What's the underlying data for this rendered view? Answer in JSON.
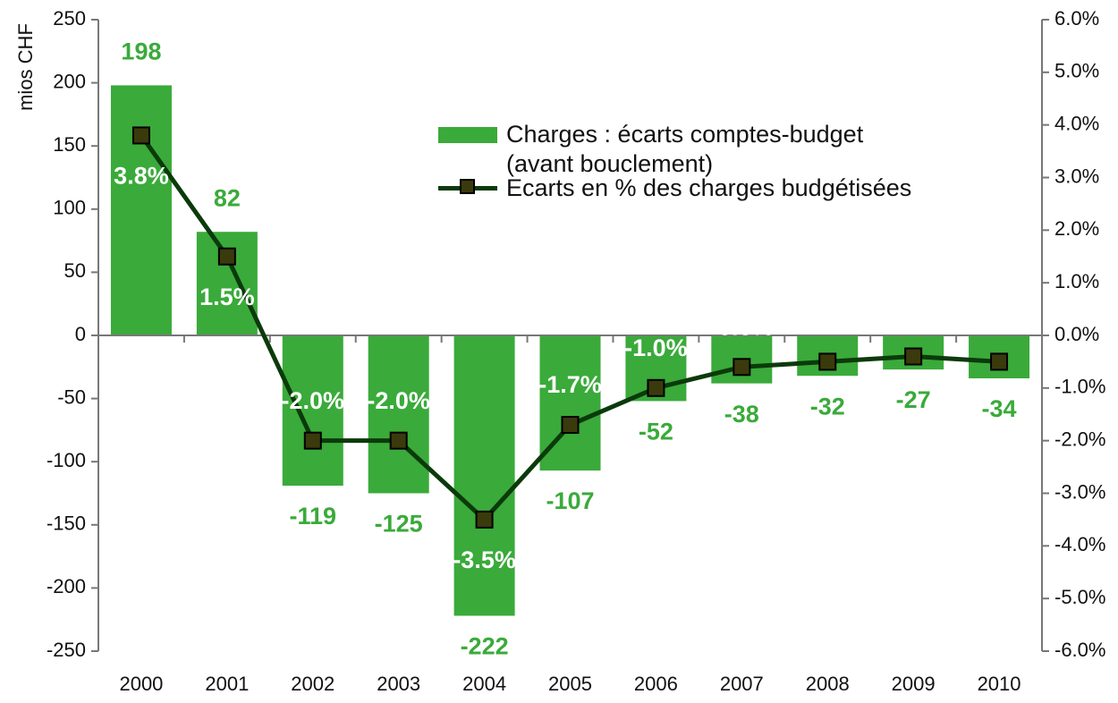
{
  "chart_data": {
    "type": "bar_line",
    "ylabel": "mios CHF",
    "categories": [
      "2000",
      "2001",
      "2002",
      "2003",
      "2004",
      "2005",
      "2006",
      "2007",
      "2008",
      "2009",
      "2010"
    ],
    "series": [
      {
        "name": "Charges : écarts comptes-budget (avant bouclement)",
        "type": "bar",
        "color": "#3aaa3a",
        "values": [
          198,
          82,
          -119,
          -125,
          -222,
          -107,
          -52,
          -38,
          -32,
          -27,
          -34
        ]
      },
      {
        "name": "Ecarts en % des charges budgétisées",
        "type": "line",
        "axis": "y2",
        "color": "#0b3a0b",
        "marker_color": "#3b3a0c",
        "values": [
          3.8,
          1.5,
          -2.0,
          -2.0,
          -3.5,
          -1.7,
          -1.0,
          -0.6,
          -0.5,
          -0.4,
          -0.5
        ],
        "value_labels": [
          "3.8%",
          "1.5%",
          "-2.0%",
          "-2.0%",
          "-3.5%",
          "-1.7%",
          "-1.0%",
          "-0.6%",
          "-0.5%",
          "-0.4%",
          "-0.5%"
        ]
      }
    ],
    "ylim": [
      -250,
      250
    ],
    "yticks": [
      -250,
      -200,
      -150,
      -100,
      -50,
      0,
      50,
      100,
      150,
      200,
      250
    ],
    "y2lim": [
      -6,
      6
    ],
    "y2ticks": [
      {
        "value": -6,
        "label": "-6.0%"
      },
      {
        "value": -5,
        "label": "-5.0%"
      },
      {
        "value": -4,
        "label": "-4.0%"
      },
      {
        "value": -3,
        "label": "-3.0%"
      },
      {
        "value": -2,
        "label": "-2.0%"
      },
      {
        "value": -1,
        "label": "-1.0%"
      },
      {
        "value": 0,
        "label": "0.0%"
      },
      {
        "value": 1,
        "label": "1.0%"
      },
      {
        "value": 2,
        "label": "2.0%"
      },
      {
        "value": 3,
        "label": "3.0%"
      },
      {
        "value": 4,
        "label": "4.0%"
      },
      {
        "value": 5,
        "label": "5.0%"
      },
      {
        "value": 6,
        "label": "6.0%"
      }
    ]
  }
}
